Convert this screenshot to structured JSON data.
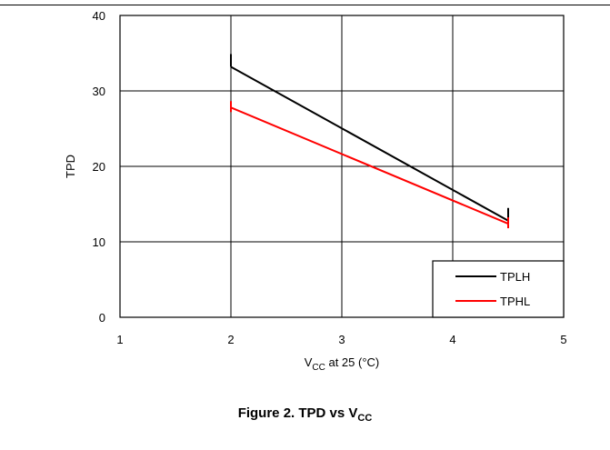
{
  "chart_data": {
    "type": "line",
    "title": "",
    "xlabel_main": "V",
    "xlabel_sub": "CC",
    "xlabel_rest": " at 25 (°C)",
    "ylabel": "TPD",
    "xlim": [
      1,
      5
    ],
    "ylim": [
      0,
      40
    ],
    "xticks": [
      "1",
      "2",
      "3",
      "4",
      "5"
    ],
    "yticks": [
      "0",
      "10",
      "20",
      "30",
      "40"
    ],
    "grid": true,
    "legend_position": "bottom-right",
    "series": [
      {
        "name": "TPLH",
        "color": "#000000",
        "x": [
          2,
          4.5
        ],
        "y": [
          33.2,
          12.8
        ]
      },
      {
        "name": "TPHL",
        "color": "#ff0000",
        "x": [
          2,
          4.5
        ],
        "y": [
          27.8,
          12.4
        ]
      }
    ]
  },
  "caption": {
    "prefix": "Figure 2. TPD vs V",
    "sub": "CC"
  }
}
